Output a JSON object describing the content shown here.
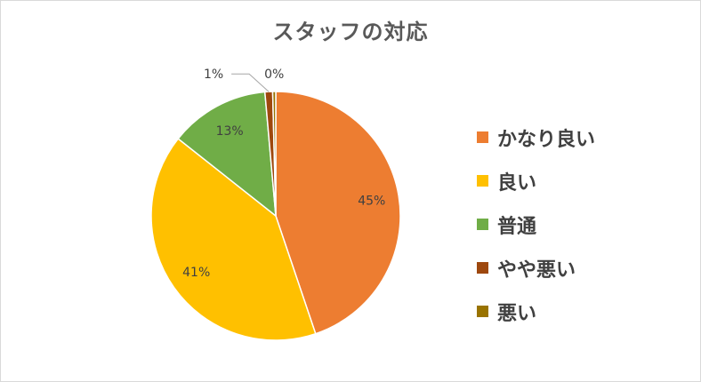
{
  "chart_data": {
    "type": "pie",
    "title": "スタッフの対応",
    "categories": [
      "かなり良い",
      "良い",
      "普通",
      "やや悪い",
      "悪い"
    ],
    "values": [
      45,
      41,
      13,
      1,
      0
    ],
    "data_labels": [
      "45%",
      "41%",
      "13%",
      "1%",
      "0%"
    ],
    "colors": [
      "#ED7D31",
      "#FFC000",
      "#70AD47",
      "#9E480E",
      "#997300"
    ],
    "legend_position": "right",
    "start_angle": "top",
    "direction": "clockwise"
  }
}
